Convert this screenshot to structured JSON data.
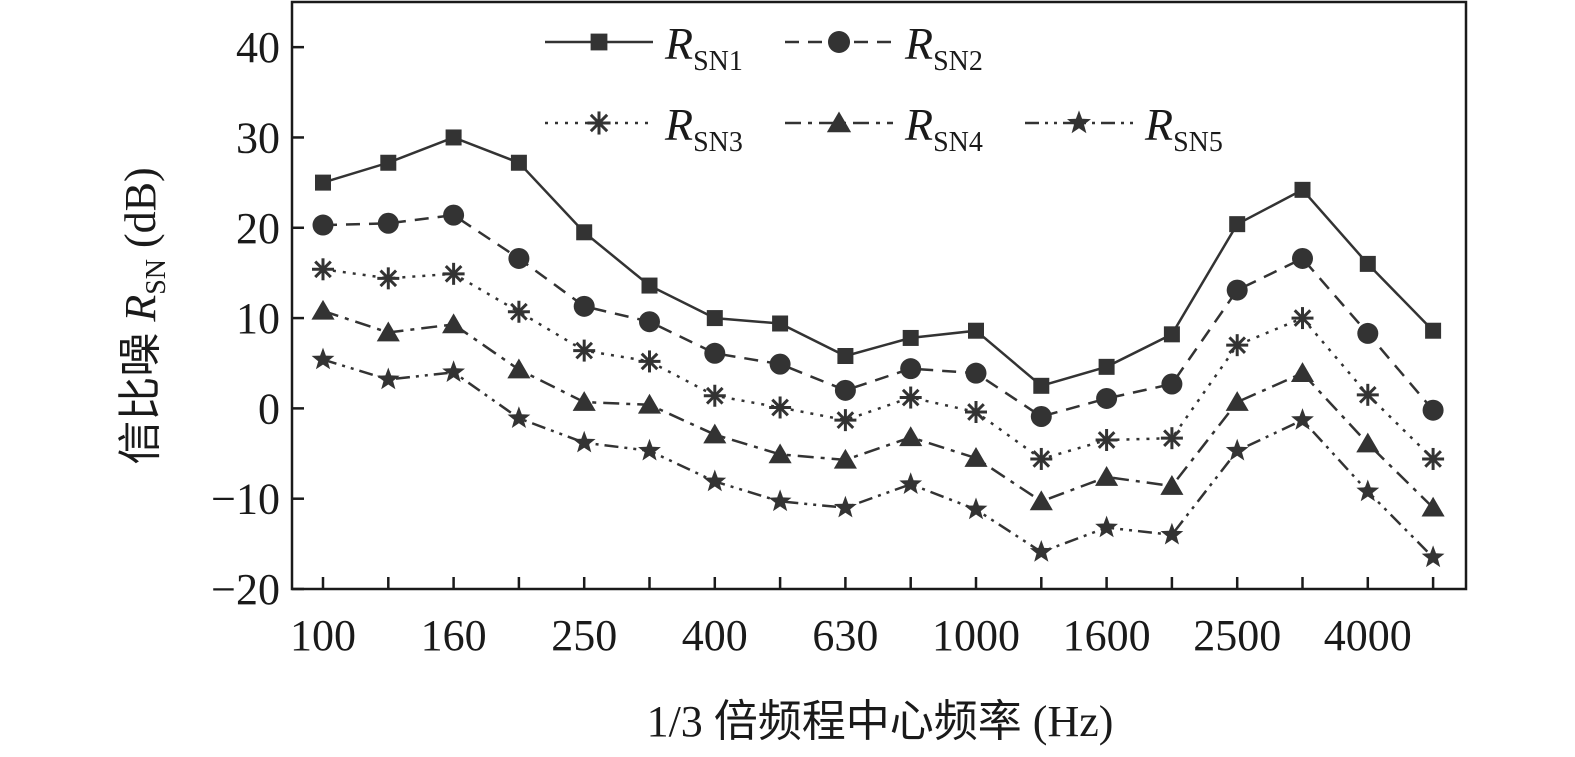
{
  "chart_data": {
    "type": "line",
    "x_tick_labels": [
      "100",
      "160",
      "250",
      "400",
      "630",
      "1000",
      "1600",
      "2500",
      "4000"
    ],
    "x": [
      "100",
      "125",
      "160",
      "200",
      "250",
      "315",
      "400",
      "500",
      "630",
      "800",
      "1000",
      "1250",
      "1600",
      "2000",
      "2500",
      "3150",
      "4000",
      "5000"
    ],
    "ylim": [
      -20,
      45
    ],
    "y_ticks": [
      -20,
      -10,
      0,
      10,
      20,
      30,
      40
    ],
    "y_tick_labels": [
      "−20",
      "−10",
      "0",
      "10",
      "20",
      "30",
      "40"
    ],
    "xlabel": "1/3 倍频程中心频率 (Hz)",
    "ylabel": {
      "prefix": "信比噪 ",
      "symbol": "R",
      "subscript": "SN",
      "suffix": " (dB)"
    },
    "legend_position": "top",
    "series": [
      {
        "name": "SN1",
        "symbol": "R",
        "subscript": "SN1",
        "marker": "square",
        "dash": "solid",
        "values": [
          25,
          27.2,
          30,
          27.2,
          19.5,
          13.6,
          10,
          9.4,
          5.8,
          7.8,
          8.6,
          2.5,
          4.6,
          8.2,
          20.4,
          24.2,
          16,
          8.6
        ]
      },
      {
        "name": "SN2",
        "symbol": "R",
        "subscript": "SN2",
        "marker": "circle",
        "dash": "dashed",
        "values": [
          20.3,
          20.5,
          21.4,
          16.6,
          11.3,
          9.6,
          6.1,
          4.9,
          2,
          4.4,
          3.9,
          -0.9,
          1.1,
          2.7,
          13.1,
          16.6,
          8.3,
          -0.2
        ]
      },
      {
        "name": "SN3",
        "symbol": "R",
        "subscript": "SN3",
        "marker": "asterisk",
        "dash": "dotted",
        "values": [
          15.4,
          14.4,
          14.9,
          10.7,
          6.4,
          5.2,
          1.4,
          0.1,
          -1.3,
          1.2,
          -0.4,
          -5.6,
          -3.5,
          -3.3,
          7,
          10,
          1.5,
          -5.6
        ]
      },
      {
        "name": "SN4",
        "symbol": "R",
        "subscript": "SN4",
        "marker": "triangle",
        "dash": "dashdot",
        "values": [
          10.8,
          8.4,
          9.3,
          4.3,
          0.7,
          0.4,
          -2.9,
          -5.1,
          -5.7,
          -3.2,
          -5.5,
          -10.3,
          -7.6,
          -8.6,
          0.7,
          3.9,
          -3.9,
          -11
        ]
      },
      {
        "name": "SN5",
        "symbol": "R",
        "subscript": "SN5",
        "marker": "star",
        "dash": "dashdotdot",
        "values": [
          5.4,
          3.2,
          4,
          -1.1,
          -3.8,
          -4.7,
          -8.1,
          -10.3,
          -11,
          -8.4,
          -11.2,
          -15.9,
          -13.2,
          -14,
          -4.7,
          -1.3,
          -9.2,
          -16.5
        ]
      }
    ],
    "colors": {
      "line": "#333333",
      "marker": "#333333",
      "axis": "#1a1a1a",
      "background": "#ffffff"
    }
  }
}
